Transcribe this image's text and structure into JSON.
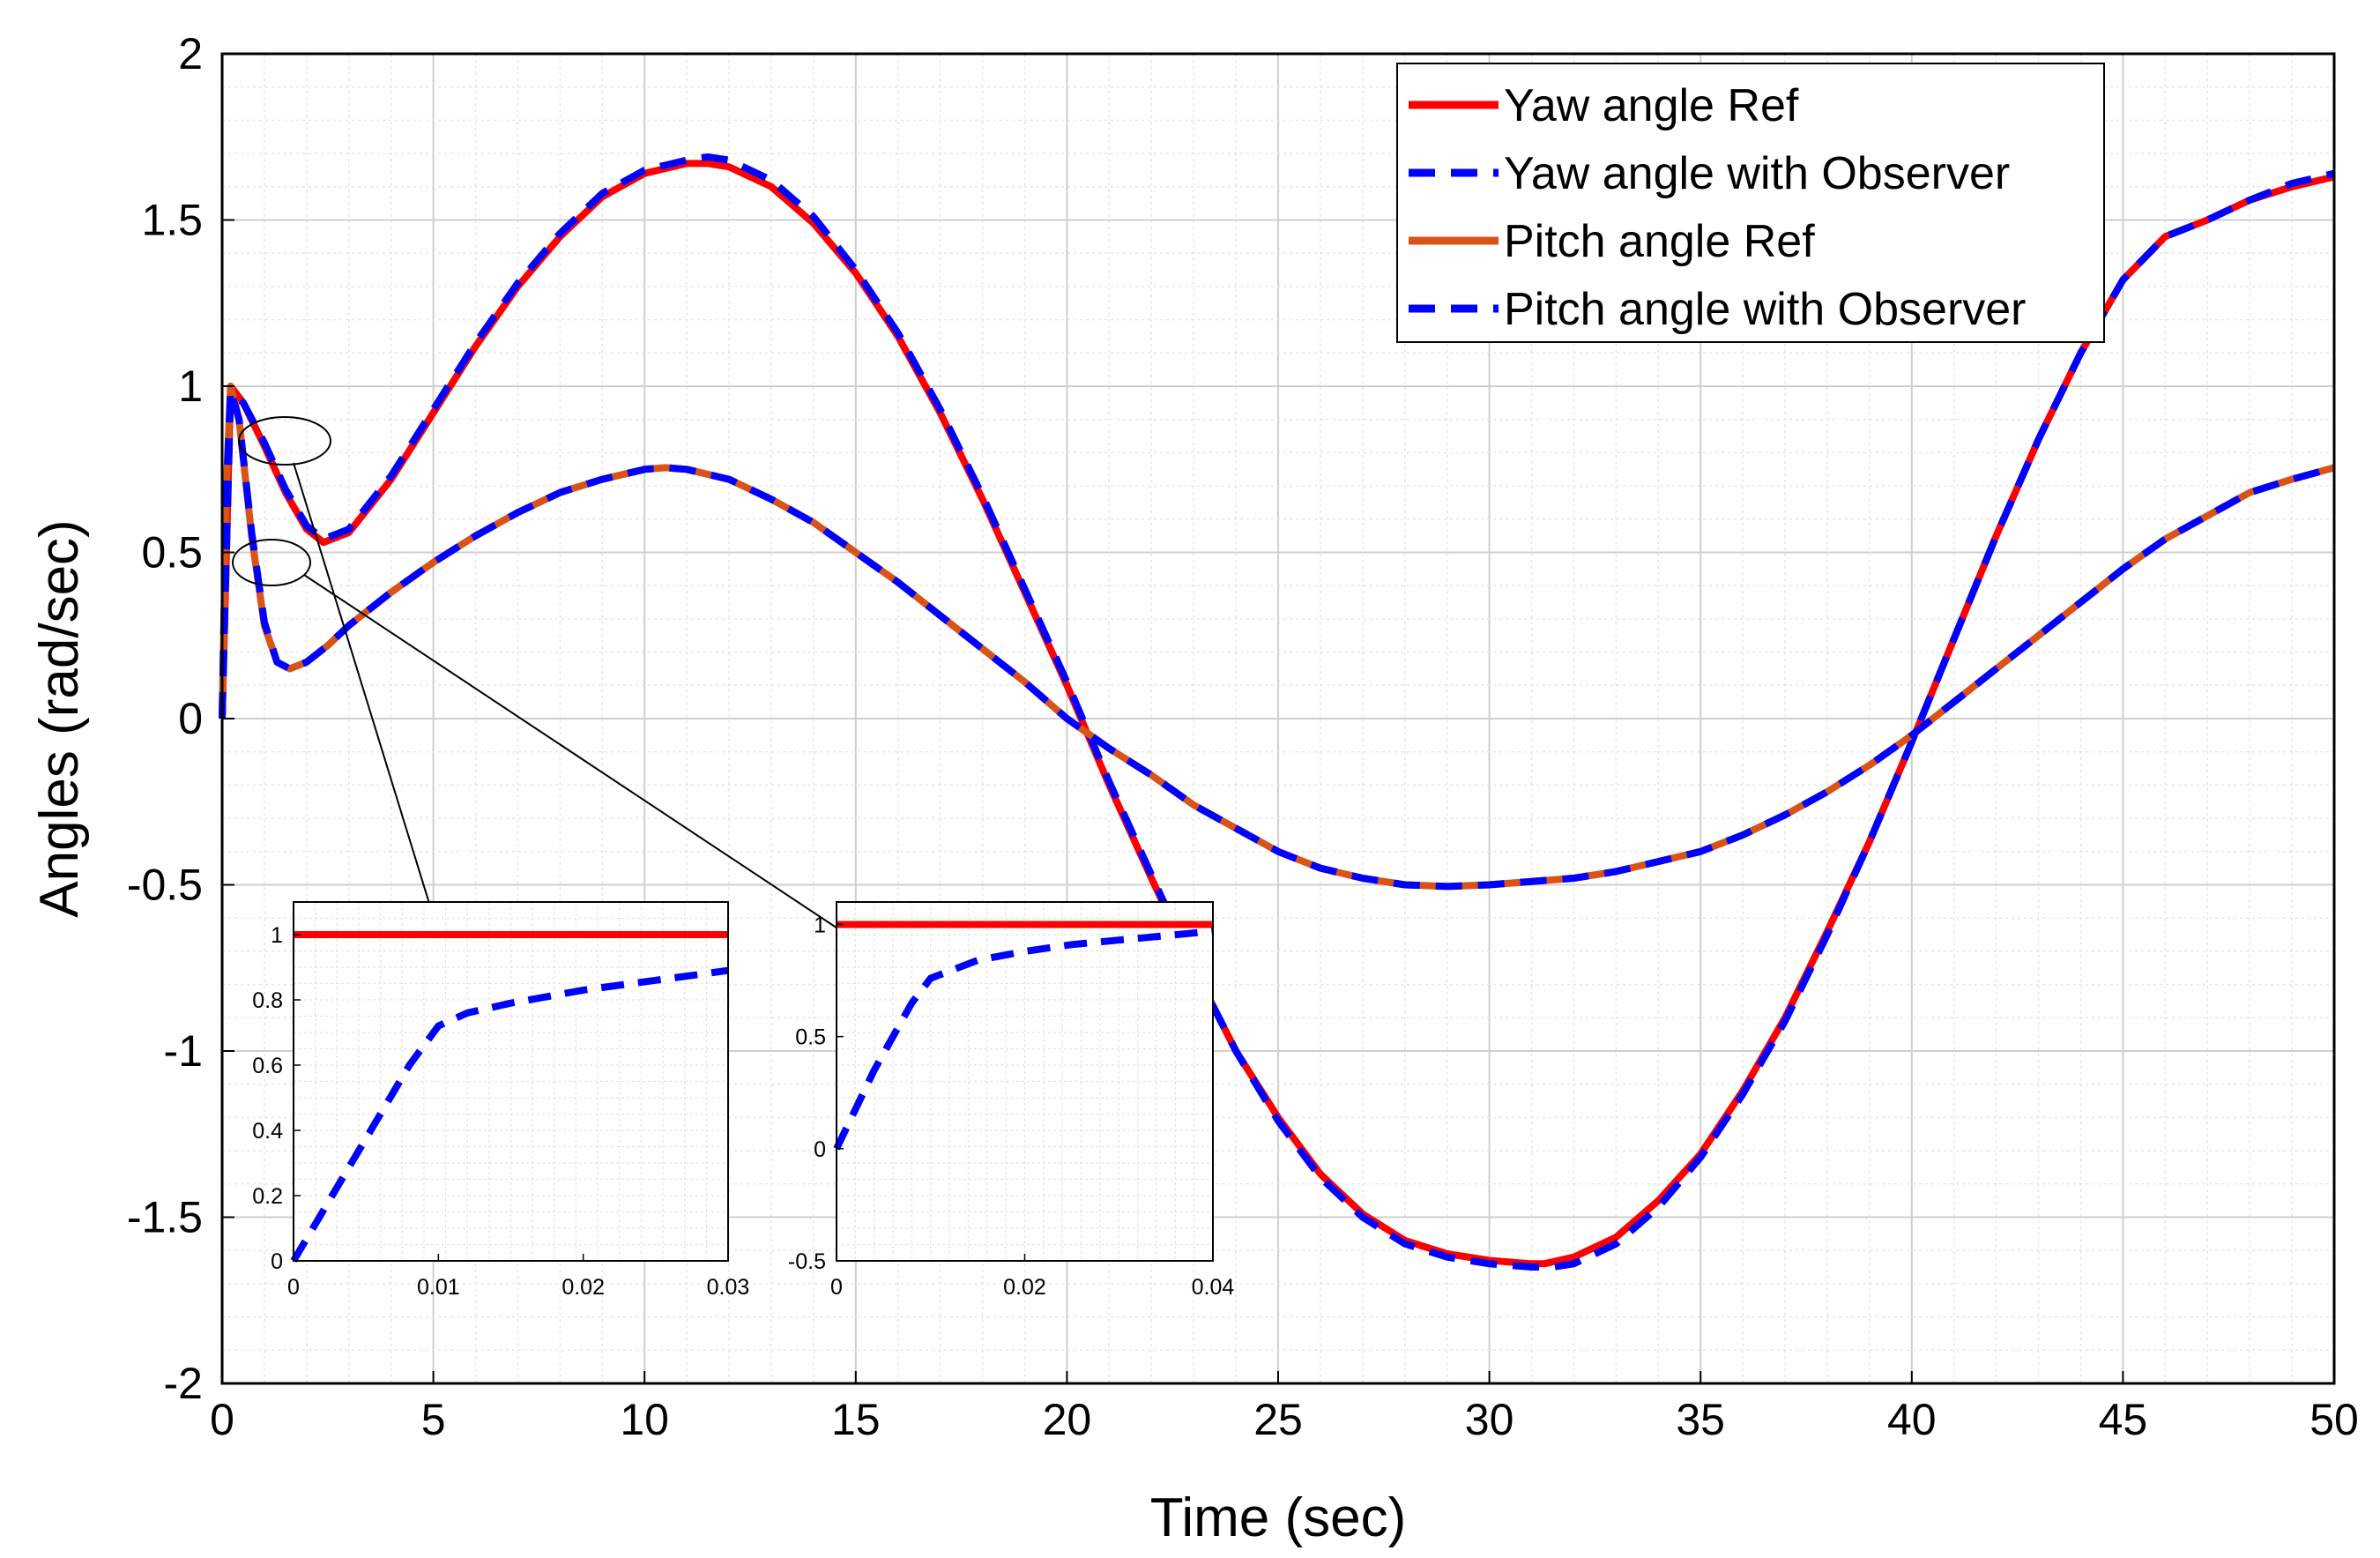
{
  "chart_data": {
    "type": "line",
    "xlabel": "Time (sec)",
    "ylabel": "Angles (rad/sec)",
    "xlim": [
      0,
      50
    ],
    "ylim": [
      -2,
      2
    ],
    "xticks": [
      "0",
      "5",
      "10",
      "15",
      "20",
      "25",
      "30",
      "35",
      "40",
      "45",
      "50"
    ],
    "yticks": [
      "-2",
      "-1.5",
      "-1",
      "-0.5",
      "0",
      "0.5",
      "1",
      "1.5",
      "2"
    ],
    "grid": true,
    "minor_grid": true,
    "legend_position": "top-right",
    "series": [
      {
        "name": "Yaw angle Ref",
        "color": "#ff0000",
        "style": "solid",
        "x": [
          0,
          0.2,
          0.5,
          1,
          1.5,
          2,
          2.4,
          3,
          4,
          5,
          6,
          7,
          8,
          9,
          10,
          11,
          11.5,
          12,
          13,
          14,
          15,
          16,
          17,
          18,
          19,
          20,
          21,
          22,
          23,
          24,
          25,
          26,
          27,
          28,
          29,
          30,
          31,
          31.3,
          32,
          33,
          34,
          35,
          36,
          37,
          38,
          39,
          40,
          41,
          42,
          43,
          44,
          45,
          46,
          47,
          48,
          49,
          50
        ],
        "y": [
          0,
          1.0,
          0.95,
          0.82,
          0.68,
          0.57,
          0.53,
          0.56,
          0.72,
          0.92,
          1.12,
          1.3,
          1.45,
          1.57,
          1.64,
          1.67,
          1.67,
          1.66,
          1.6,
          1.49,
          1.34,
          1.15,
          0.92,
          0.66,
          0.38,
          0.1,
          -0.2,
          -0.48,
          -0.75,
          -1.0,
          -1.2,
          -1.37,
          -1.49,
          -1.57,
          -1.61,
          -1.63,
          -1.64,
          -1.64,
          -1.62,
          -1.56,
          -1.45,
          -1.31,
          -1.12,
          -0.9,
          -0.64,
          -0.37,
          -0.07,
          0.24,
          0.55,
          0.84,
          1.1,
          1.32,
          1.45,
          1.5,
          1.56,
          1.6,
          1.63
        ]
      },
      {
        "name": "Yaw angle with Observer",
        "color": "#0000ff",
        "style": "dashed",
        "x": [
          0,
          0.2,
          0.5,
          1,
          1.5,
          2,
          2.4,
          3,
          4,
          5,
          6,
          7,
          8,
          9,
          10,
          11,
          11.5,
          12,
          13,
          14,
          15,
          16,
          17,
          18,
          19,
          20,
          21,
          22,
          23,
          24,
          25,
          26,
          27,
          28,
          29,
          30,
          31,
          31.5,
          32,
          33,
          34,
          35,
          36,
          37,
          38,
          39,
          40,
          41,
          42,
          43,
          44,
          45,
          46,
          47,
          48,
          49,
          50
        ],
        "y": [
          0,
          0.98,
          0.95,
          0.83,
          0.69,
          0.58,
          0.54,
          0.57,
          0.73,
          0.93,
          1.13,
          1.31,
          1.46,
          1.58,
          1.65,
          1.68,
          1.69,
          1.68,
          1.62,
          1.51,
          1.35,
          1.16,
          0.93,
          0.67,
          0.39,
          0.11,
          -0.19,
          -0.47,
          -0.75,
          -1.0,
          -1.21,
          -1.38,
          -1.5,
          -1.58,
          -1.62,
          -1.64,
          -1.65,
          -1.65,
          -1.64,
          -1.58,
          -1.47,
          -1.32,
          -1.13,
          -0.91,
          -0.65,
          -0.37,
          -0.07,
          0.24,
          0.55,
          0.84,
          1.1,
          1.32,
          1.45,
          1.5,
          1.56,
          1.61,
          1.64
        ]
      },
      {
        "name": "Pitch angle Ref",
        "color": "#d95319",
        "style": "solid",
        "x": [
          0,
          0.1,
          0.2,
          0.4,
          0.7,
          1,
          1.3,
          1.6,
          2,
          2.5,
          3,
          4,
          5,
          6,
          7,
          8,
          9,
          10,
          10.5,
          11,
          12,
          13,
          14,
          15,
          16,
          17,
          18,
          19,
          20,
          21,
          22,
          23,
          24,
          25,
          26,
          27,
          28,
          29,
          30,
          31,
          32,
          33,
          34,
          35,
          36,
          37,
          38,
          39,
          40,
          41,
          42,
          43,
          44,
          45,
          46,
          47,
          48,
          49,
          50
        ],
        "y": [
          0,
          0.7,
          1.0,
          0.9,
          0.55,
          0.28,
          0.17,
          0.15,
          0.17,
          0.22,
          0.28,
          0.38,
          0.47,
          0.55,
          0.62,
          0.68,
          0.72,
          0.75,
          0.755,
          0.75,
          0.72,
          0.66,
          0.59,
          0.5,
          0.41,
          0.31,
          0.21,
          0.11,
          0.0,
          -0.09,
          -0.17,
          -0.26,
          -0.33,
          -0.4,
          -0.45,
          -0.48,
          -0.5,
          -0.505,
          -0.5,
          -0.49,
          -0.48,
          -0.46,
          -0.43,
          -0.4,
          -0.35,
          -0.29,
          -0.22,
          -0.14,
          -0.05,
          0.05,
          0.15,
          0.25,
          0.35,
          0.45,
          0.54,
          0.61,
          0.68,
          0.72,
          0.755
        ]
      },
      {
        "name": "Pitch angle with Observer",
        "color": "#0000ff",
        "style": "dashed",
        "x": [
          0,
          0.1,
          0.2,
          0.4,
          0.7,
          1,
          1.3,
          1.6,
          2,
          2.5,
          3,
          4,
          5,
          6,
          7,
          8,
          9,
          10,
          10.5,
          11,
          12,
          13,
          14,
          15,
          16,
          17,
          18,
          19,
          20,
          21,
          22,
          23,
          24,
          25,
          26,
          27,
          28,
          29,
          30,
          31,
          32,
          33,
          34,
          35,
          36,
          37,
          38,
          39,
          40,
          41,
          42,
          43,
          44,
          45,
          46,
          47,
          48,
          49,
          50
        ],
        "y": [
          0,
          0.68,
          0.99,
          0.9,
          0.56,
          0.29,
          0.17,
          0.15,
          0.17,
          0.22,
          0.28,
          0.38,
          0.47,
          0.55,
          0.62,
          0.68,
          0.72,
          0.75,
          0.755,
          0.75,
          0.72,
          0.66,
          0.59,
          0.5,
          0.41,
          0.31,
          0.21,
          0.11,
          0.0,
          -0.09,
          -0.17,
          -0.26,
          -0.33,
          -0.4,
          -0.45,
          -0.48,
          -0.5,
          -0.505,
          -0.5,
          -0.49,
          -0.48,
          -0.46,
          -0.43,
          -0.4,
          -0.35,
          -0.29,
          -0.22,
          -0.14,
          -0.05,
          0.05,
          0.15,
          0.25,
          0.35,
          0.45,
          0.54,
          0.61,
          0.68,
          0.72,
          0.755
        ]
      }
    ],
    "insets": [
      {
        "xlim": [
          0,
          0.03
        ],
        "ylim": [
          0,
          1.1
        ],
        "xticks": [
          "0",
          "0.01",
          "0.02",
          "0.03"
        ],
        "yticks": [
          "0",
          "0.2",
          "0.4",
          "0.6",
          "0.8",
          "1"
        ],
        "ref": {
          "x": [
            0,
            0.03
          ],
          "y": [
            1,
            1
          ]
        },
        "observer": {
          "x": [
            0,
            0.004,
            0.008,
            0.01,
            0.012,
            0.015,
            0.02,
            0.025,
            0.03
          ],
          "y": [
            0,
            0.3,
            0.6,
            0.72,
            0.76,
            0.79,
            0.83,
            0.86,
            0.89
          ]
        }
      },
      {
        "xlim": [
          0,
          0.04
        ],
        "ylim": [
          -0.5,
          1.1
        ],
        "xticks": [
          "0",
          "0.02",
          "0.04"
        ],
        "yticks": [
          "-0.5",
          "0",
          "0.5",
          "1"
        ],
        "ref": {
          "x": [
            0,
            0.04
          ],
          "y": [
            1,
            1
          ]
        },
        "observer": {
          "x": [
            0,
            0.004,
            0.008,
            0.01,
            0.015,
            0.02,
            0.025,
            0.03,
            0.035,
            0.04
          ],
          "y": [
            0,
            0.35,
            0.65,
            0.76,
            0.84,
            0.88,
            0.91,
            0.93,
            0.95,
            0.97
          ]
        }
      }
    ]
  }
}
